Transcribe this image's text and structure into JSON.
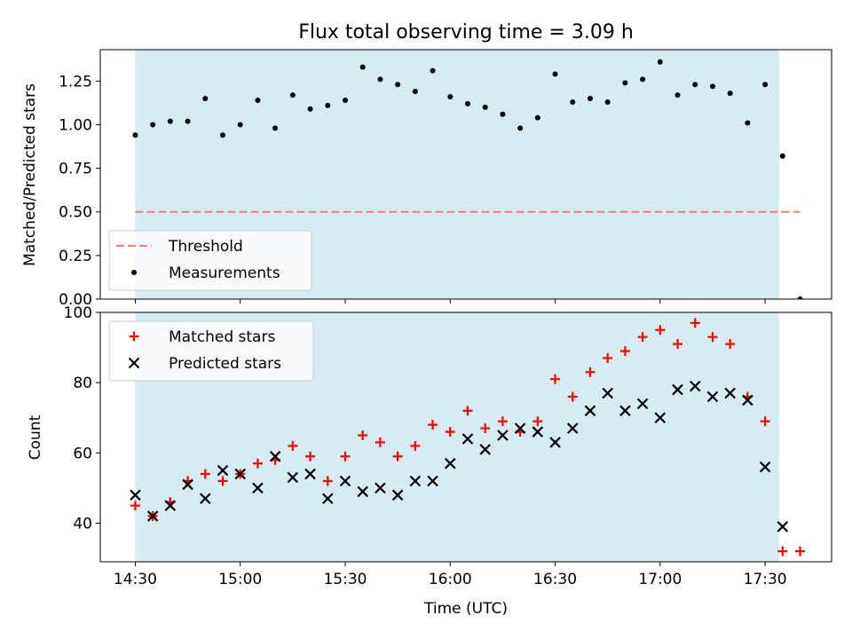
{
  "chart_data": [
    {
      "type": "scatter",
      "title": "Flux total observing time = 3.09 h",
      "xlabel": "",
      "ylabel": "Matched/Predicted stars",
      "ylim": [
        0,
        1.43
      ],
      "yticks": [
        "0.00",
        "0.25",
        "0.50",
        "0.75",
        "1.00",
        "1.25"
      ],
      "yticks_values": [
        0,
        0.25,
        0.5,
        0.75,
        1.0,
        1.25
      ],
      "shaded_region": {
        "start": "14:30",
        "end": "17:34",
        "color": "#add8e6"
      },
      "threshold": {
        "name": "Threshold",
        "value": 0.5,
        "color": "#f08080"
      },
      "legend_position": "lower-left",
      "series": [
        {
          "name": "Measurements",
          "color": "#000000",
          "marker": "dot",
          "x": [
            "14:30",
            "14:35",
            "14:40",
            "14:45",
            "14:50",
            "14:55",
            "15:00",
            "15:05",
            "15:10",
            "15:15",
            "15:20",
            "15:25",
            "15:30",
            "15:35",
            "15:40",
            "15:45",
            "15:50",
            "15:55",
            "16:00",
            "16:05",
            "16:10",
            "16:15",
            "16:20",
            "16:25",
            "16:30",
            "16:35",
            "16:40",
            "16:45",
            "16:50",
            "16:55",
            "17:00",
            "17:05",
            "17:10",
            "17:15",
            "17:20",
            "17:25",
            "17:30",
            "17:35",
            "17:40"
          ],
          "values": [
            0.94,
            1.0,
            1.02,
            1.02,
            1.15,
            0.94,
            1.0,
            1.14,
            0.98,
            1.17,
            1.09,
            1.11,
            1.14,
            1.33,
            1.26,
            1.23,
            1.19,
            1.31,
            1.16,
            1.12,
            1.1,
            1.06,
            0.98,
            1.04,
            1.29,
            1.13,
            1.15,
            1.13,
            1.24,
            1.26,
            1.36,
            1.17,
            1.23,
            1.22,
            1.18,
            1.01,
            1.23,
            0.82,
            0.0
          ]
        }
      ]
    },
    {
      "type": "scatter",
      "xlabel": "Time (UTC)",
      "ylabel": "Count",
      "ylim": [
        29,
        100
      ],
      "yticks": [
        "40",
        "60",
        "80",
        "100"
      ],
      "yticks_values": [
        40,
        60,
        80,
        100
      ],
      "xticks": [
        "14:30",
        "15:00",
        "15:30",
        "16:00",
        "16:30",
        "17:00",
        "17:30"
      ],
      "xlim": [
        "14:20",
        "17:49"
      ],
      "shaded_region": {
        "start": "14:30",
        "end": "17:34",
        "color": "#add8e6"
      },
      "legend_position": "top-left",
      "series": [
        {
          "name": "Matched stars",
          "color": "#ff0000",
          "marker": "plus",
          "x": [
            "14:30",
            "14:35",
            "14:40",
            "14:45",
            "14:50",
            "14:55",
            "15:00",
            "15:05",
            "15:10",
            "15:15",
            "15:20",
            "15:25",
            "15:30",
            "15:35",
            "15:40",
            "15:45",
            "15:50",
            "15:55",
            "16:00",
            "16:05",
            "16:10",
            "16:15",
            "16:20",
            "16:25",
            "16:30",
            "16:35",
            "16:40",
            "16:45",
            "16:50",
            "16:55",
            "17:00",
            "17:05",
            "17:10",
            "17:15",
            "17:20",
            "17:25",
            "17:30",
            "17:35",
            "17:40"
          ],
          "values": [
            45,
            42,
            46,
            52,
            54,
            52,
            54,
            57,
            58,
            62,
            59,
            52,
            59,
            65,
            63,
            59,
            62,
            68,
            66,
            72,
            67,
            69,
            66,
            69,
            81,
            76,
            83,
            87,
            89,
            93,
            95,
            91,
            97,
            93,
            91,
            76,
            69,
            32,
            32
          ]
        },
        {
          "name": "Predicted stars",
          "color": "#000000",
          "marker": "cross",
          "x": [
            "14:30",
            "14:35",
            "14:40",
            "14:45",
            "14:50",
            "14:55",
            "15:00",
            "15:05",
            "15:10",
            "15:15",
            "15:20",
            "15:25",
            "15:30",
            "15:35",
            "15:40",
            "15:45",
            "15:50",
            "15:55",
            "16:00",
            "16:05",
            "16:10",
            "16:15",
            "16:20",
            "16:25",
            "16:30",
            "16:35",
            "16:40",
            "16:45",
            "16:50",
            "16:55",
            "17:00",
            "17:05",
            "17:10",
            "17:15",
            "17:20",
            "17:25",
            "17:30",
            "17:35"
          ],
          "values": [
            48,
            42,
            45,
            51,
            47,
            55,
            54,
            50,
            59,
            53,
            54,
            47,
            52,
            49,
            50,
            48,
            52,
            52,
            57,
            64,
            61,
            65,
            67,
            66,
            63,
            67,
            72,
            77,
            72,
            74,
            70,
            78,
            79,
            76,
            77,
            75,
            56,
            39
          ]
        }
      ]
    }
  ]
}
